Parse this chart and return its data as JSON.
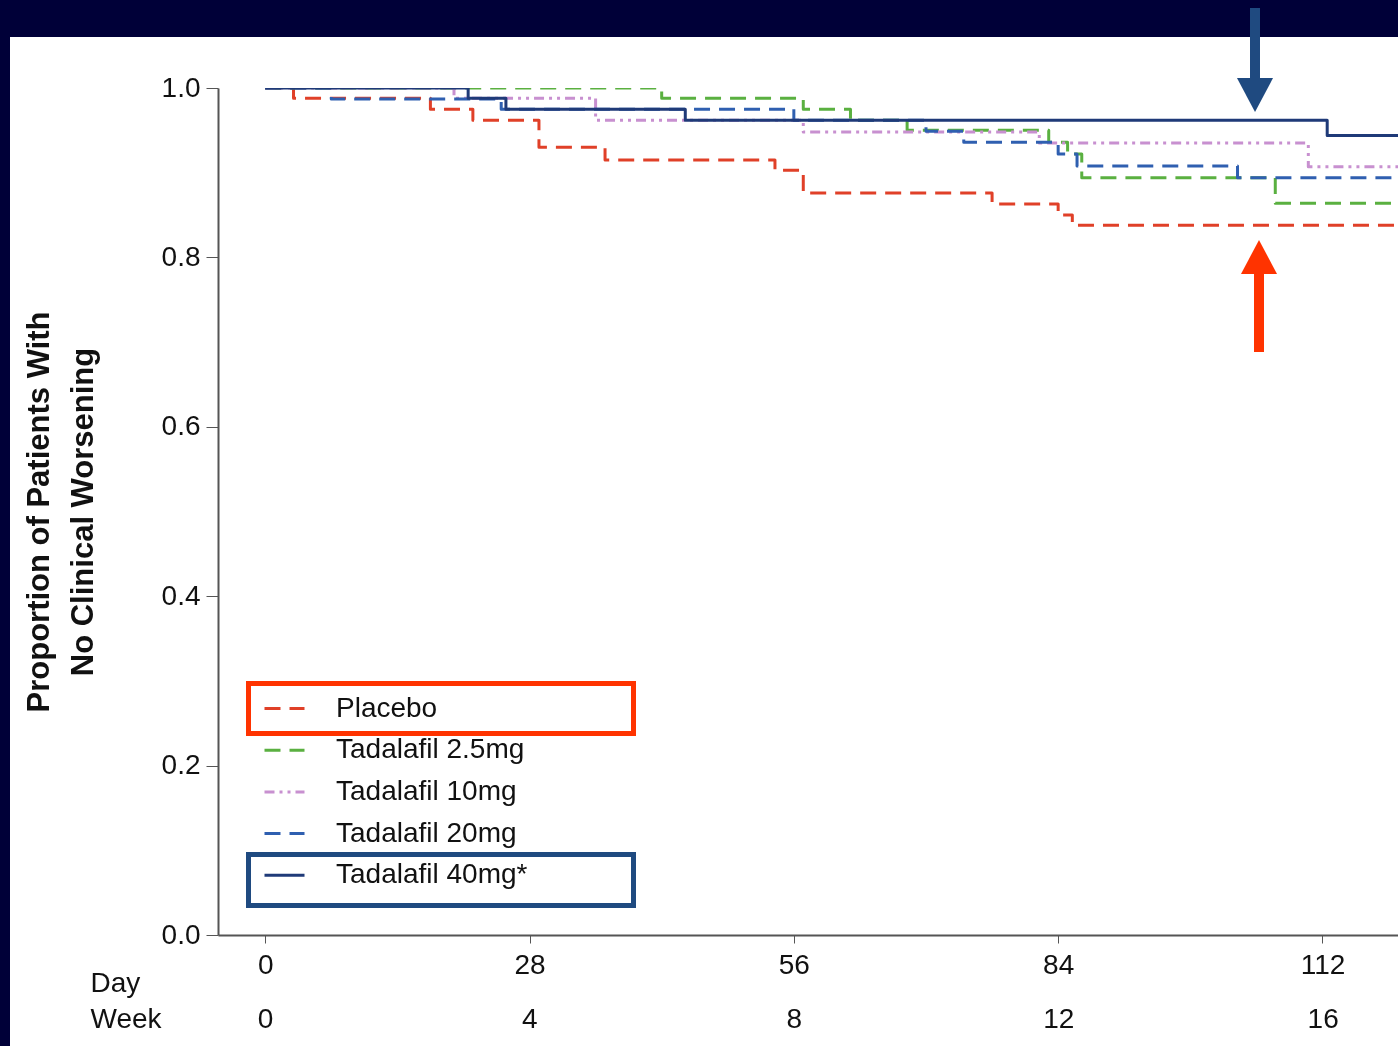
{
  "chart_data": {
    "type": "step",
    "xlabel": "Day",
    "x2label": "Week",
    "ylabel": "Proportion of Patients With\nNo Clinical Worsening",
    "xlim": [
      -5,
      120
    ],
    "xticks": [
      0,
      28,
      56,
      84,
      112
    ],
    "x2lim": [
      -0.71,
      17.14
    ],
    "x2ticks": [
      0,
      4,
      8,
      12,
      16
    ],
    "ylim": [
      0,
      1
    ],
    "yticks": [
      {
        "value": 0,
        "label": "0.0"
      },
      {
        "value": 0.2,
        "label": "0.2"
      },
      {
        "value": 0.4,
        "label": "0.4"
      },
      {
        "value": 0.6,
        "label": "0.6"
      },
      {
        "value": 0.8,
        "label": "0.8"
      },
      {
        "value": 1,
        "label": "1.0"
      }
    ],
    "grid": false,
    "legend": "bottom left",
    "series": [
      {
        "name": "Placebo",
        "color": "#e04028",
        "line_style": "dashed",
        "x": [
          0,
          3,
          17.5,
          22,
          29,
          36,
          54,
          57,
          77,
          84,
          85.5,
          120
        ],
        "values": [
          1,
          0.988,
          0.975,
          0.962,
          0.93,
          0.915,
          0.903,
          0.876,
          0.863,
          0.85,
          0.838,
          0.838
        ]
      },
      {
        "name": "Tadalafil 2.5mg",
        "color": "#5ab040",
        "line_style": "dashed",
        "x": [
          0,
          42,
          57,
          62,
          68,
          83,
          85,
          86.5,
          107,
          120
        ],
        "values": [
          1,
          0.988,
          0.975,
          0.962,
          0.95,
          0.936,
          0.922,
          0.894,
          0.864,
          0.864
        ]
      },
      {
        "name": "Tadalafil 10mg",
        "color": "#c890d0",
        "line_style": "dotted",
        "x": [
          0,
          20,
          35,
          57,
          82,
          110.5,
          120
        ],
        "values": [
          1,
          0.988,
          0.962,
          0.948,
          0.935,
          0.907,
          0.907
        ]
      },
      {
        "name": "Tadalafil 20mg",
        "color": "#2f5fb0",
        "line_style": "dashed",
        "x": [
          0,
          7,
          25,
          56,
          70,
          74,
          84,
          86,
          103,
          120
        ],
        "values": [
          1,
          0.987,
          0.975,
          0.962,
          0.949,
          0.936,
          0.922,
          0.908,
          0.894,
          0.894
        ]
      },
      {
        "name": "Tadalafil 40mg*",
        "color": "#1f3a78",
        "line_style": "solid",
        "x": [
          0,
          21.5,
          25.5,
          44.5,
          112.5,
          120
        ],
        "values": [
          1,
          0.988,
          0.975,
          0.962,
          0.944,
          0.944
        ]
      }
    ]
  }
}
